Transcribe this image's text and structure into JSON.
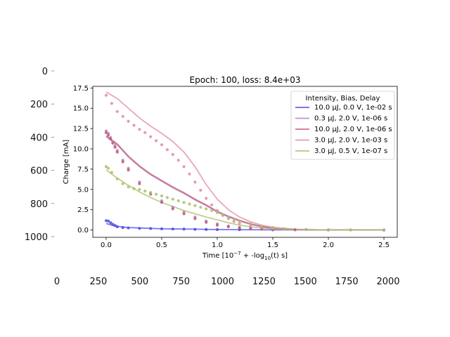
{
  "chart_data": [
    {
      "type": "line",
      "title": "Epoch: 100, loss: 8.4e+03",
      "xlabel": "Time [10$^{-7}$ + -log$_{10}$(t) s]",
      "xlabel_parts": {
        "main": "Time [10",
        "sup": "−7",
        "mid": " + -log",
        "sub": "10",
        "tail": "(t) s]"
      },
      "ylabel": "Charge [mA]",
      "xlim": [
        -0.12,
        2.62
      ],
      "ylim": [
        -0.9,
        17.7
      ],
      "xticks": [
        0.0,
        0.5,
        1.0,
        1.5,
        2.0,
        2.5
      ],
      "xtick_labels": [
        "0.0",
        "0.5",
        "1.0",
        "1.5",
        "2.0",
        "2.5"
      ],
      "yticks": [
        0.0,
        2.5,
        5.0,
        7.5,
        10.0,
        12.5,
        15.0,
        17.5
      ],
      "ytick_labels": [
        "0.0",
        "2.5",
        "5.0",
        "7.5",
        "10.0",
        "12.5",
        "15.0",
        "17.5"
      ],
      "grid": false,
      "legend_title": "Intensity, Bias, Delay",
      "legend_position": "upper right",
      "series": [
        {
          "name": "10.0 μJ, 0.0 V, 1e-02 s",
          "color": "#4a4ae6",
          "model_x": [
            0.0,
            0.05,
            0.1,
            0.2,
            0.3,
            0.5,
            0.8,
            1.0,
            1.5,
            2.0,
            2.5
          ],
          "model_y": [
            0.8,
            0.6,
            0.45,
            0.3,
            0.25,
            0.15,
            0.1,
            0.05,
            0.02,
            0.01,
            0.0
          ],
          "points_x": [
            0.0,
            0.02,
            0.04,
            0.06,
            0.08,
            0.1,
            0.15,
            0.2,
            0.3,
            0.4,
            0.5,
            0.6,
            0.7,
            0.8,
            0.9,
            1.0,
            1.2,
            1.5,
            2.0,
            2.5
          ],
          "points_y": [
            1.15,
            1.1,
            0.9,
            0.7,
            0.55,
            0.4,
            0.3,
            0.25,
            0.2,
            0.18,
            0.15,
            0.12,
            0.1,
            0.08,
            0.06,
            0.05,
            0.04,
            0.02,
            0.01,
            0.0
          ]
        },
        {
          "name": "0.3 μJ, 2.0 V, 1e-06 s",
          "color": "#b580c9",
          "model_x": [
            0.0,
            0.1,
            0.2,
            0.3,
            0.4,
            0.5,
            0.6,
            0.7,
            0.8,
            0.9,
            1.0,
            1.1,
            1.2,
            1.3,
            1.4,
            1.5,
            1.7,
            2.0,
            2.5
          ],
          "model_y": [
            11.5,
            10.5,
            9.0,
            7.8,
            6.8,
            6.0,
            5.2,
            4.5,
            3.7,
            3.0,
            2.2,
            1.6,
            1.1,
            0.7,
            0.4,
            0.2,
            0.05,
            0.0,
            0.0
          ],
          "points_x": [
            0.0,
            0.02,
            0.04,
            0.06,
            0.08,
            0.1,
            0.15,
            0.2,
            0.3,
            0.4,
            0.5,
            0.6,
            0.7,
            0.8,
            0.9,
            1.0,
            1.1,
            1.2,
            1.3,
            1.4,
            1.5,
            1.7,
            2.0,
            2.5
          ],
          "points_y": [
            12.2,
            11.9,
            11.4,
            10.9,
            10.4,
            9.8,
            8.6,
            7.6,
            5.9,
            4.6,
            3.6,
            2.8,
            2.2,
            1.6,
            1.1,
            0.75,
            0.5,
            0.33,
            0.22,
            0.14,
            0.08,
            0.04,
            0.02,
            0.0
          ]
        },
        {
          "name": "10.0 μJ, 2.0 V, 1e-06 s",
          "color": "#c25873",
          "model_x": [
            0.0,
            0.1,
            0.2,
            0.3,
            0.4,
            0.5,
            0.6,
            0.7,
            0.8,
            0.9,
            1.0,
            1.1,
            1.2,
            1.3,
            1.4,
            1.5,
            1.7,
            2.0,
            2.5
          ],
          "model_y": [
            11.6,
            10.6,
            9.1,
            7.9,
            6.9,
            6.1,
            5.3,
            4.6,
            3.8,
            3.1,
            2.3,
            1.7,
            1.2,
            0.75,
            0.45,
            0.22,
            0.06,
            0.0,
            0.0
          ],
          "points_x": [
            0.0,
            0.02,
            0.04,
            0.06,
            0.08,
            0.1,
            0.15,
            0.2,
            0.3,
            0.4,
            0.5,
            0.6,
            0.7,
            0.8,
            0.9,
            1.0,
            1.1,
            1.2,
            1.3,
            1.4,
            1.5,
            1.7,
            2.0,
            2.5
          ],
          "points_y": [
            12.0,
            11.7,
            11.2,
            10.7,
            10.2,
            9.6,
            8.4,
            7.4,
            5.7,
            4.4,
            3.4,
            2.6,
            2.0,
            1.4,
            0.95,
            0.6,
            0.4,
            0.25,
            0.16,
            0.1,
            0.06,
            0.03,
            0.01,
            0.0
          ]
        },
        {
          "name": "3.0 μJ, 2.0 V, 1e-03 s",
          "color": "#e08aa0",
          "model_x": [
            0.0,
            0.1,
            0.2,
            0.3,
            0.4,
            0.5,
            0.6,
            0.7,
            0.8,
            0.9,
            1.0,
            1.1,
            1.2,
            1.3,
            1.4,
            1.5,
            1.6,
            1.7,
            1.8,
            2.0,
            2.5
          ],
          "model_y": [
            17.0,
            16.2,
            15.0,
            13.8,
            12.8,
            11.9,
            10.9,
            9.6,
            7.8,
            5.6,
            3.8,
            2.5,
            1.6,
            1.0,
            0.6,
            0.35,
            0.2,
            0.1,
            0.05,
            0.0,
            0.0
          ],
          "points_x": [
            0.0,
            0.05,
            0.1,
            0.15,
            0.2,
            0.25,
            0.3,
            0.35,
            0.4,
            0.45,
            0.5,
            0.55,
            0.6,
            0.65,
            0.7,
            0.75,
            0.8,
            0.85,
            0.9,
            0.95,
            1.0,
            1.05,
            1.1,
            1.15,
            1.2,
            1.3,
            1.4,
            1.5,
            1.6,
            1.8,
            2.0,
            2.2,
            2.5
          ],
          "points_y": [
            16.6,
            15.6,
            14.6,
            14.0,
            13.4,
            12.9,
            12.4,
            12.0,
            11.5,
            11.0,
            10.5,
            9.9,
            9.3,
            8.6,
            7.8,
            6.9,
            5.9,
            4.9,
            3.9,
            3.1,
            2.4,
            1.8,
            1.4,
            1.05,
            0.8,
            0.5,
            0.3,
            0.18,
            0.1,
            0.05,
            0.02,
            0.01,
            0.0
          ]
        },
        {
          "name": "3.0 μJ, 0.5 V, 1e-07 s",
          "color": "#a8c06a",
          "model_x": [
            0.0,
            0.1,
            0.2,
            0.3,
            0.4,
            0.5,
            0.6,
            0.7,
            0.8,
            0.9,
            1.0,
            1.1,
            1.2,
            1.3,
            1.4,
            1.5,
            1.7,
            2.0,
            2.5
          ],
          "model_y": [
            7.4,
            6.4,
            5.5,
            4.7,
            4.0,
            3.4,
            2.9,
            2.4,
            2.0,
            1.6,
            1.25,
            0.9,
            0.6,
            0.4,
            0.25,
            0.15,
            0.05,
            0.0,
            0.0
          ],
          "points_x": [
            0.0,
            0.02,
            0.05,
            0.1,
            0.15,
            0.2,
            0.25,
            0.3,
            0.35,
            0.4,
            0.45,
            0.5,
            0.55,
            0.6,
            0.65,
            0.7,
            0.75,
            0.8,
            0.85,
            0.9,
            0.95,
            1.0,
            1.05,
            1.1,
            1.15,
            1.2,
            1.3,
            1.4,
            1.5,
            1.6,
            1.8,
            2.0,
            2.2,
            2.5
          ],
          "points_y": [
            7.8,
            7.6,
            7.1,
            6.3,
            5.7,
            5.3,
            5.1,
            5.0,
            4.8,
            4.6,
            4.4,
            4.2,
            4.0,
            3.8,
            3.6,
            3.4,
            3.2,
            3.0,
            2.8,
            2.6,
            2.4,
            2.15,
            1.9,
            1.6,
            1.35,
            1.1,
            0.75,
            0.48,
            0.3,
            0.18,
            0.07,
            0.03,
            0.01,
            0.0
          ]
        }
      ]
    },
    {
      "type": "line",
      "title": "",
      "background_xticks": [
        0,
        250,
        500,
        750,
        1000,
        1250,
        1500,
        1750,
        2000
      ],
      "background_xtick_labels": [
        "0",
        "250",
        "500",
        "750",
        "1000",
        "1250",
        "1500",
        "1750",
        "2000"
      ],
      "background_yticks": [
        0,
        200,
        400,
        600,
        800,
        1000
      ],
      "background_ytick_labels": [
        "0",
        "200",
        "400",
        "600",
        "800",
        "1000"
      ]
    }
  ]
}
